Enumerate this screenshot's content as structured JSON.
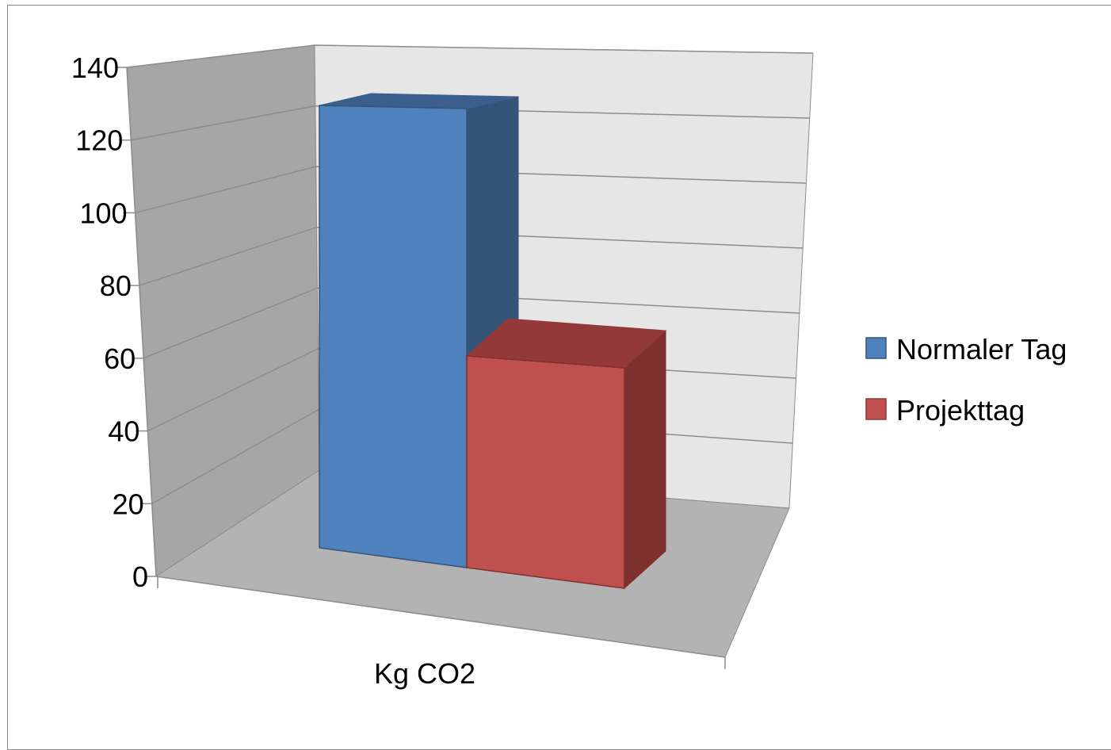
{
  "chart_data": {
    "type": "bar",
    "style": "3d-clustered-column",
    "categories": [
      "Kg CO2"
    ],
    "series": [
      {
        "name": "Normaler Tag",
        "values": [
          130
        ],
        "color": "#4f81bd",
        "side_color": "#345478",
        "top_color": "#3a5f8d"
      },
      {
        "name": "Projekttag",
        "values": [
          61
        ],
        "color": "#c0504d",
        "side_color": "#7e302f",
        "top_color": "#93393a"
      }
    ],
    "ylim": [
      0,
      140
    ],
    "yticks": [
      "0",
      "20",
      "40",
      "60",
      "80",
      "100",
      "120",
      "140"
    ],
    "grid": true,
    "legend_position": "right",
    "title": "",
    "xlabel": "",
    "ylabel": ""
  },
  "colors": {
    "back_wall": "#e6e6e6",
    "side_wall": "#a6a6a6",
    "floor": "#b3b3b3",
    "gridline": "#8c8c8c"
  }
}
